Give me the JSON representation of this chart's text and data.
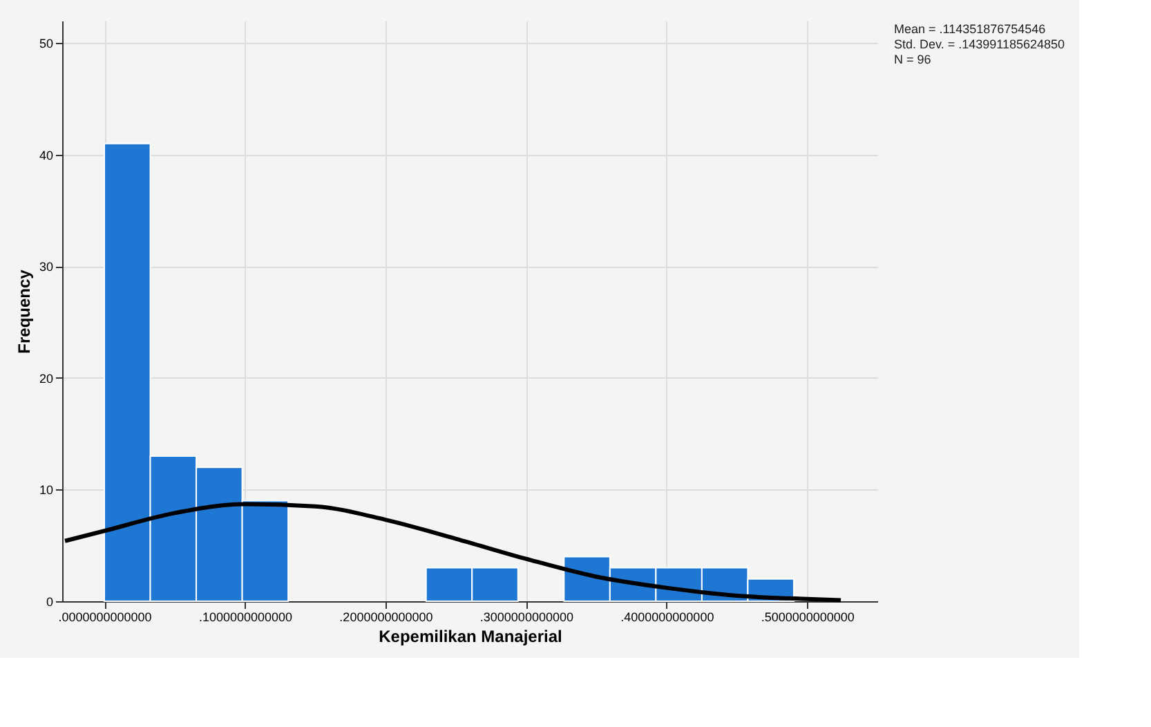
{
  "chart_data": {
    "type": "histogram",
    "xlabel": "Kepemilikan Manajerial",
    "ylabel": "Frequency",
    "bins": [
      0,
      0.0327,
      0.0654,
      0.0981,
      0.1308,
      0.1635,
      0.1962,
      0.2289,
      0.2616,
      0.2943,
      0.327,
      0.3597,
      0.3924,
      0.4251,
      0.4578,
      0.4905
    ],
    "series": [
      {
        "color": "#1f77d4",
        "values": [
          41,
          13,
          12,
          9,
          0,
          0,
          0,
          3,
          3,
          0,
          4,
          3,
          3,
          3,
          2
        ]
      },
      {
        "type": "line",
        "color": "#000000",
        "x": [
          -0.028,
          0,
          0.05,
          0.1,
          0.15,
          0.2,
          0.25,
          0.3,
          0.35,
          0.4,
          0.45,
          0.5,
          0.524
        ],
        "values": [
          5.4,
          6.3,
          7.9,
          8.7,
          8.5,
          7.3,
          5.6,
          3.8,
          2.2,
          1.2,
          0.5,
          0.2,
          0.1
        ]
      }
    ],
    "xlim": [
      -0.03,
      0.55
    ],
    "xticks": [
      {
        "value": 0,
        "label": ".0000000000000"
      },
      {
        "value": 0.1,
        "label": ".1000000000000"
      },
      {
        "value": 0.2,
        "label": ".2000000000000"
      },
      {
        "value": 0.3,
        "label": ".3000000000000"
      },
      {
        "value": 0.4,
        "label": ".4000000000000"
      },
      {
        "value": 0.5,
        "label": ".5000000000000"
      }
    ],
    "ylim": [
      0,
      52
    ],
    "yticks": [
      0,
      10,
      20,
      30,
      40,
      50
    ],
    "grid": true,
    "annotations": [
      "Mean = .114351876754546",
      "Std. Dev. = .143991185624850",
      "N = 96"
    ]
  }
}
